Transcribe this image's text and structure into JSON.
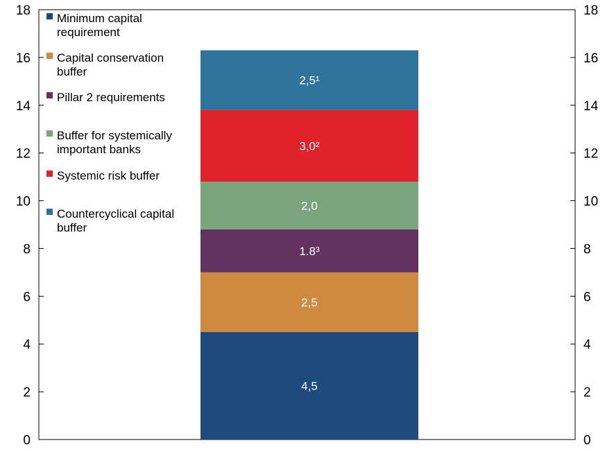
{
  "chart_data": {
    "type": "bar",
    "stacked": true,
    "categories": [
      ""
    ],
    "y_ticks": [
      "0",
      "2",
      "4",
      "6",
      "8",
      "10",
      "12",
      "14",
      "16",
      "18"
    ],
    "ylim": [
      0,
      18
    ],
    "y_axis_right": true,
    "grid": false,
    "legend_position": "top-left inside",
    "series": [
      {
        "name": "Minimum capital requirement",
        "values": [
          4.5
        ],
        "label": "4,5",
        "color": "#1F4A7D"
      },
      {
        "name": "Capital conservation buffer",
        "values": [
          2.5
        ],
        "label": "2,5",
        "color": "#CE8B40"
      },
      {
        "name": "Pillar 2 requirements",
        "values": [
          1.8
        ],
        "label": "1.8³",
        "color": "#633360"
      },
      {
        "name": "Buffer for systemically important banks",
        "values": [
          2.0
        ],
        "label": "2,0",
        "color": "#7AA57C"
      },
      {
        "name": "Systemic risk buffer",
        "values": [
          3.0
        ],
        "label": "3,0²",
        "color": "#E0222D"
      },
      {
        "name": "Countercyclical capital buffer",
        "values": [
          2.5
        ],
        "label": "2,5¹",
        "color": "#2E7399"
      }
    ],
    "legend": [
      {
        "lines": [
          "Minimum capital",
          "requirement"
        ]
      },
      {
        "lines": [
          "Capital conservation",
          "buffer"
        ]
      },
      {
        "lines": [
          "Pillar 2 requirements"
        ]
      },
      {
        "lines": [
          "Buffer for systemically",
          "important banks"
        ]
      },
      {
        "lines": [
          "Systemic risk buffer"
        ]
      },
      {
        "lines": [
          "Countercyclical capital",
          "buffer"
        ]
      }
    ]
  }
}
